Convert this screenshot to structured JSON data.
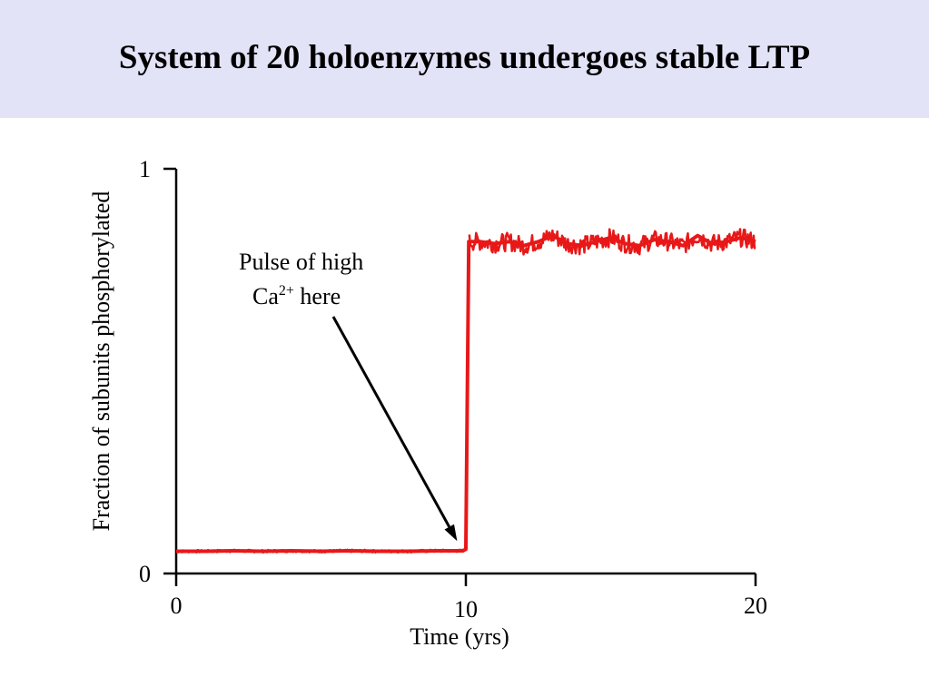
{
  "slide": {
    "title": "System of 20 holoenzymes undergoes stable LTP",
    "colors": {
      "title_band": "#e3e3f8",
      "trace": "#e81818",
      "axis": "#000000"
    }
  },
  "annotation": {
    "line1": "Pulse of high",
    "ca": "Ca",
    "sup": "2+",
    "here": " here"
  },
  "chart_data": {
    "type": "line",
    "title": "",
    "xlabel": "Time (yrs)",
    "ylabel": "Fraction of subunits phosphorylated",
    "xlim": [
      0,
      20
    ],
    "ylim": [
      0,
      1
    ],
    "xticks": [
      0,
      10,
      20
    ],
    "yticks": [
      0,
      1
    ],
    "xtick_labels": [
      "0",
      "10",
      "20"
    ],
    "ytick_labels": [
      "0",
      "1"
    ],
    "grid": false,
    "legend": "none",
    "series": [
      {
        "color": "#e81818",
        "x": [
          0,
          1,
          2,
          3,
          4,
          5,
          6,
          7,
          8,
          9,
          9.9,
          10.0,
          10.1,
          10.5,
          11,
          11.5,
          12,
          12.5,
          13,
          13.5,
          14,
          14.5,
          15,
          15.5,
          16,
          16.5,
          17,
          17.5,
          18,
          18.5,
          19,
          19.5,
          20
        ],
        "y": [
          0.055,
          0.055,
          0.056,
          0.055,
          0.056,
          0.055,
          0.056,
          0.055,
          0.055,
          0.056,
          0.056,
          0.06,
          0.82,
          0.82,
          0.815,
          0.82,
          0.81,
          0.82,
          0.835,
          0.815,
          0.81,
          0.82,
          0.83,
          0.815,
          0.81,
          0.825,
          0.82,
          0.81,
          0.835,
          0.815,
          0.82,
          0.83,
          0.82
        ]
      }
    ],
    "annotation_arrow_target": {
      "x": 9.7,
      "y": 0.08
    }
  }
}
